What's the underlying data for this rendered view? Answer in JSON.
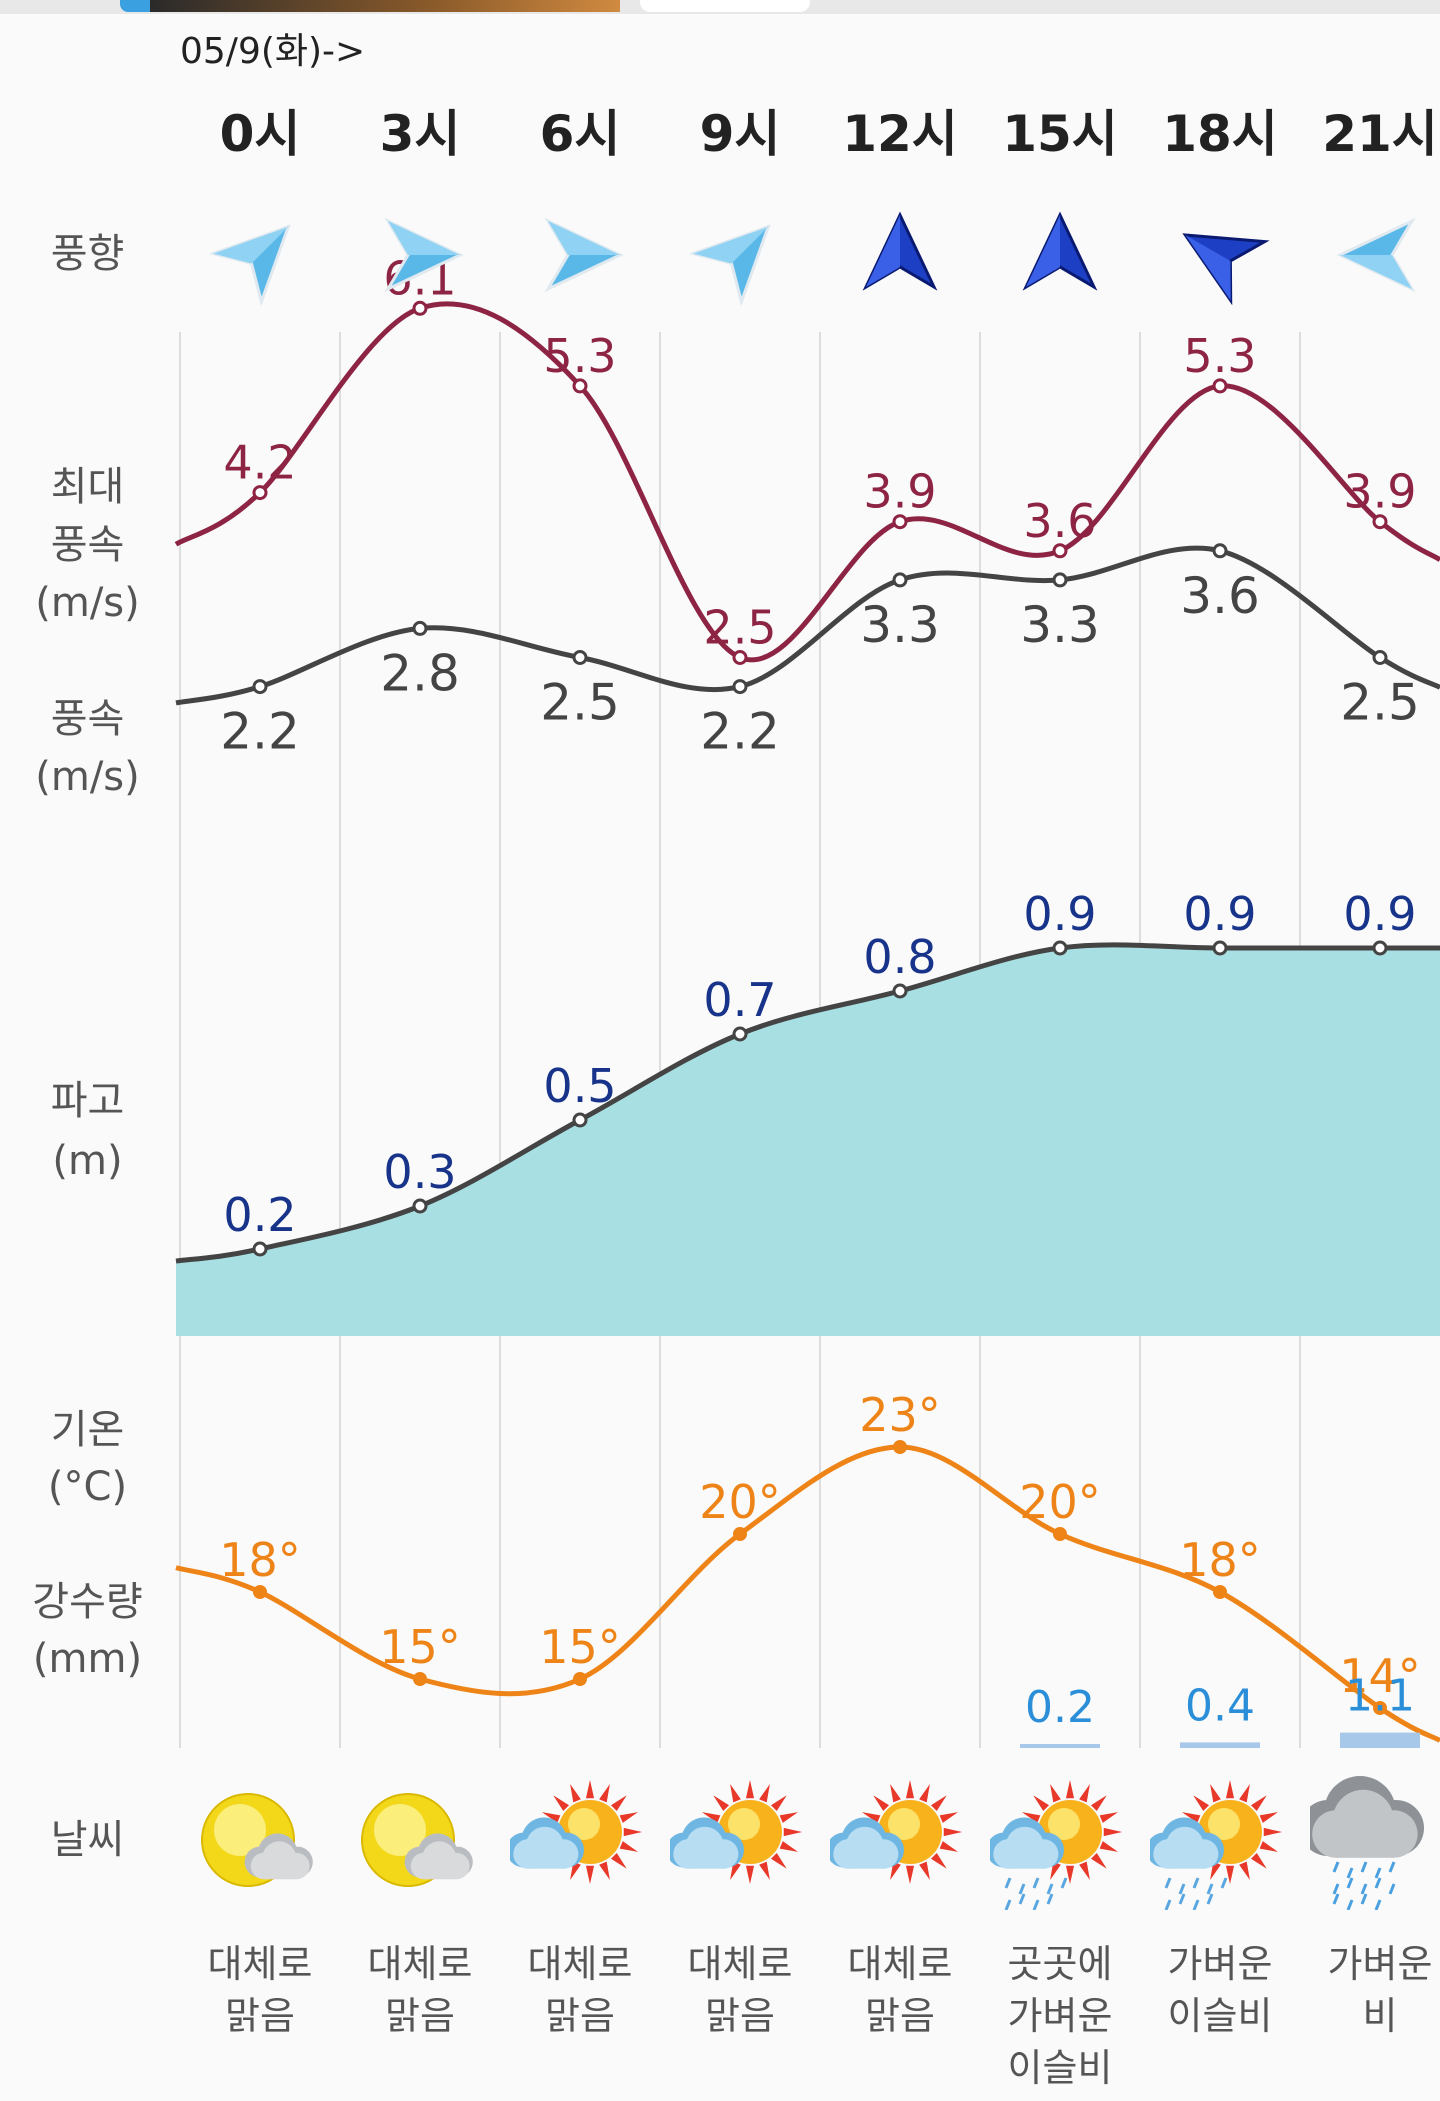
{
  "date_header": "05/9(화)->",
  "hours": [
    "0시",
    "3시",
    "6시",
    "9시",
    "12시",
    "15시",
    "18시",
    "21시"
  ],
  "row_labels": {
    "wind_direction": "풍향",
    "max_wind_1": "최대",
    "max_wind_2": "풍속",
    "max_wind_3": "(m/s)",
    "wind_1": "풍속",
    "wind_2": "(m/s)",
    "wave_1": "파고",
    "wave_2": "(m)",
    "temp_1": "기온",
    "temp_2": "(°C)",
    "precip_1": "강수량",
    "precip_2": "(mm)",
    "weather": "날씨"
  },
  "wind_direction_icons": [
    "arrow-northeast-icon",
    "arrow-east-icon",
    "arrow-east-icon",
    "arrow-northeast-icon",
    "arrow-north-icon",
    "arrow-north-icon",
    "arrow-northwest-icon",
    "arrow-west-icon"
  ],
  "weather_icons": [
    "sun-cloud-icon",
    "sun-cloud-icon",
    "sun-cloud-icon",
    "sun-cloud-icon",
    "sun-cloud-icon",
    "sun-cloud-rain-icon",
    "sun-cloud-rain-icon",
    "rain-cloud-icon"
  ],
  "weather_desc": [
    [
      "대체로",
      "맑음"
    ],
    [
      "대체로",
      "맑음"
    ],
    [
      "대체로",
      "맑음"
    ],
    [
      "대체로",
      "맑음"
    ],
    [
      "대체로",
      "맑음"
    ],
    [
      "곳곳에",
      "가벼운",
      "이슬비"
    ],
    [
      "가벼운",
      "이슬비"
    ],
    [
      "가벼운",
      "비"
    ]
  ],
  "colors": {
    "max_wind": "#8e2443",
    "wind": "#444444",
    "wave_line": "#444444",
    "wave_fill": "#a8dfe3",
    "wave_label": "#17338a",
    "temp": "#ee8417",
    "precip_label": "#2a8fd8",
    "precip_bar": "#a8c8ea",
    "grid": "#dddddd"
  },
  "chart_data": {
    "type": "line",
    "categories": [
      "0시",
      "3시",
      "6시",
      "9시",
      "12시",
      "15시",
      "18시",
      "21시"
    ],
    "series": [
      {
        "name": "최대 풍속 (m/s)",
        "values": [
          4.2,
          6.1,
          5.3,
          2.5,
          3.9,
          3.6,
          5.3,
          3.9
        ],
        "labels": [
          "4.2",
          "6.1",
          "5.3",
          "2.5",
          "3.9",
          "3.6",
          "5.3",
          "3.9"
        ]
      },
      {
        "name": "풍속 (m/s)",
        "values": [
          2.2,
          2.8,
          2.5,
          2.2,
          3.3,
          3.3,
          3.6,
          2.5
        ],
        "labels": [
          "2.2",
          "2.8",
          "2.5",
          "2.2",
          "3.3",
          "3.3",
          "3.6",
          "2.5"
        ]
      },
      {
        "name": "파고 (m)",
        "values": [
          0.2,
          0.3,
          0.5,
          0.7,
          0.8,
          0.9,
          0.9,
          0.9
        ],
        "labels": [
          "0.2",
          "0.3",
          "0.5",
          "0.7",
          "0.8",
          "0.9",
          "0.9",
          "0.9"
        ]
      },
      {
        "name": "기온 (°C)",
        "values": [
          18,
          15,
          15,
          20,
          23,
          20,
          18,
          14
        ],
        "labels": [
          "18°",
          "15°",
          "15°",
          "20°",
          "23°",
          "20°",
          "18°",
          "14°"
        ]
      },
      {
        "name": "강수량 (mm)",
        "values": [
          null,
          null,
          null,
          null,
          null,
          0.2,
          0.4,
          1.1
        ],
        "labels": [
          "",
          "",
          "",
          "",
          "",
          "0.2",
          "0.4",
          "1.1"
        ]
      }
    ],
    "wind_ylim": [
      0,
      8
    ],
    "wave_ylim": [
      0,
      1.2
    ],
    "temp_ylim": [
      10,
      26
    ]
  }
}
